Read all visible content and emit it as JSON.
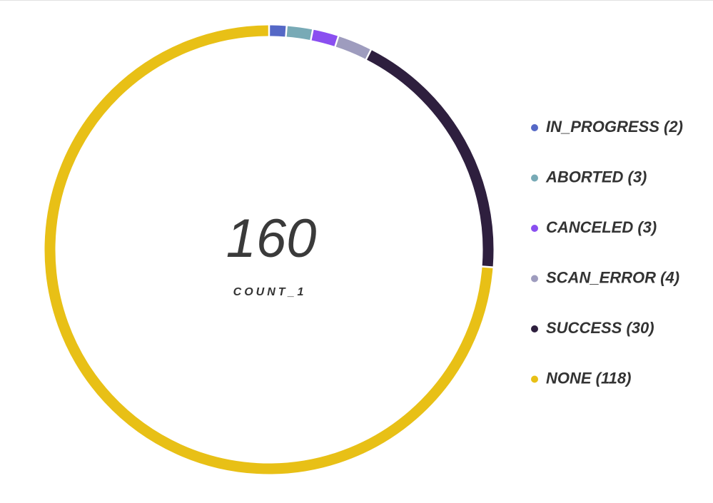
{
  "chart_data": {
    "type": "donut",
    "categories": [
      "IN_PROGRESS (2)",
      "ABORTED (3)",
      "CANCELED (3)",
      "SCAN_ERROR (4)",
      "SUCCESS (30)",
      "NONE (118)"
    ],
    "values": [
      2,
      3,
      3,
      4,
      30,
      118
    ],
    "colors": [
      "#5568c6",
      "#78aab6",
      "#8a4ff0",
      "#9e9cbe",
      "#2e1f3e",
      "#e8c016"
    ],
    "total": 160,
    "total_label": "COUNT_1"
  }
}
